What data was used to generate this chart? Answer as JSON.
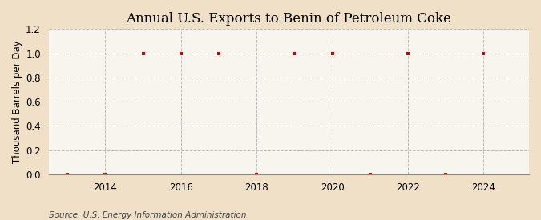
{
  "title": "Annual U.S. Exports to Benin of Petroleum Coke",
  "ylabel": "Thousand Barrels per Day",
  "source": "Source: U.S. Energy Information Administration",
  "years": [
    2013,
    2014,
    2015,
    2016,
    2017,
    2018,
    2019,
    2020,
    2021,
    2022,
    2023,
    2024
  ],
  "values": [
    0,
    0,
    1,
    1,
    1,
    0,
    1,
    1,
    0,
    1,
    0,
    1
  ],
  "xlim": [
    2012.5,
    2025.2
  ],
  "ylim": [
    0,
    1.2
  ],
  "yticks": [
    0.0,
    0.2,
    0.4,
    0.6,
    0.8,
    1.0,
    1.2
  ],
  "xticks": [
    2014,
    2016,
    2018,
    2020,
    2022,
    2024
  ],
  "marker_color": "#cc0000",
  "marker": "s",
  "marker_size": 3.5,
  "grid_color": "#bbbbbb",
  "background_color": "#f0e0c8",
  "plot_bg_color": "#f8f4ee",
  "title_fontsize": 12,
  "label_fontsize": 8.5,
  "tick_fontsize": 8.5,
  "source_fontsize": 7.5
}
